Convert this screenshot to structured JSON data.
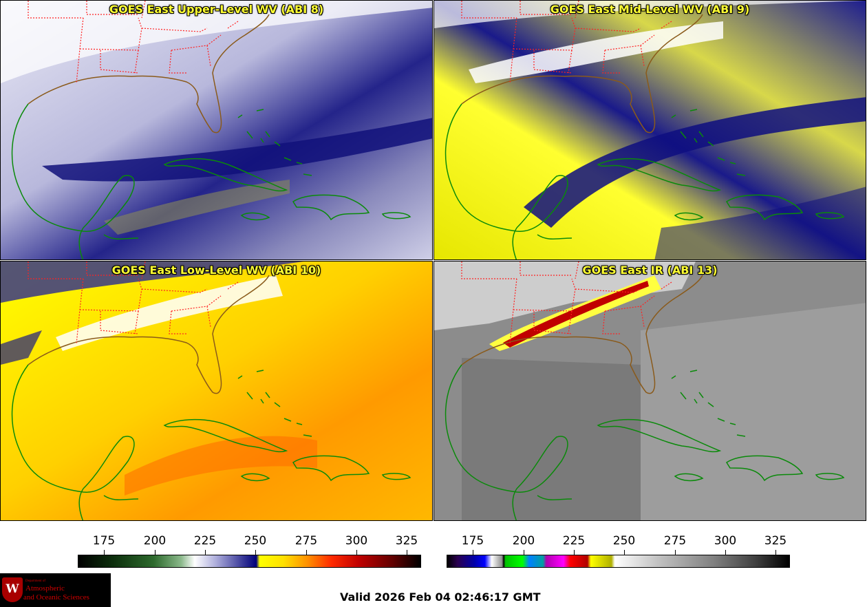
{
  "panels": [
    {
      "id": "p1",
      "title": "GOES East Upper-Level WV (ABI 8)",
      "scheme": "upper"
    },
    {
      "id": "p2",
      "title": "GOES East Mid-Level WV (ABI 9)",
      "scheme": "mid"
    },
    {
      "id": "p3",
      "title": "GOES East Low-Level WV (ABI 10)",
      "scheme": "low"
    },
    {
      "id": "p4",
      "title": "GOES East IR (ABI 13)",
      "scheme": "ir"
    }
  ],
  "colorbars": {
    "wv": {
      "ticks": [
        "175",
        "200",
        "225",
        "250",
        "275",
        "300",
        "325"
      ],
      "values": [
        175,
        200,
        225,
        250,
        275,
        300,
        325
      ],
      "range": [
        162,
        332
      ]
    },
    "ir": {
      "ticks": [
        "175",
        "200",
        "225",
        "250",
        "275",
        "300",
        "325"
      ],
      "values": [
        175,
        200,
        225,
        250,
        275,
        300,
        325
      ],
      "range": [
        162,
        332
      ]
    }
  },
  "logo": {
    "department": "Department of",
    "line1": "Atmospheric",
    "line2": "and Oceanic Sciences",
    "seal_letter": "W"
  },
  "valid_time": "Valid 2026 Feb 04 02:46:17 GMT",
  "colors": {
    "title": "#ffff33",
    "coastline": "#0a8a0a",
    "state_borders": "#ff2222",
    "us_coast": "#8a5a1a"
  }
}
